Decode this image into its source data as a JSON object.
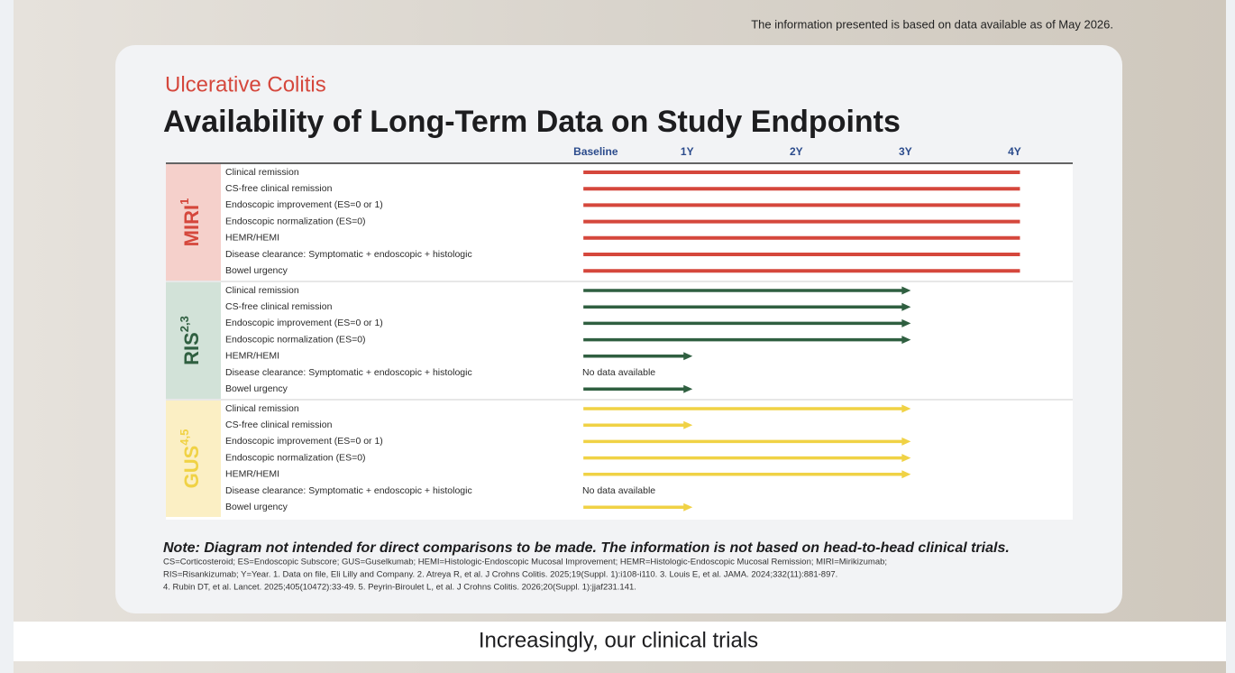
{
  "top_note": "The information presented is based on data available as of May 2026.",
  "caption": "Increasingly, our clinical trials",
  "chart_data": {
    "type": "range-bar",
    "subtitle": "Ulcerative Colitis",
    "title": "Availability of Long-Term Data on Study Endpoints",
    "xlim": [
      -0.15,
      4.5
    ],
    "xticks": [
      {
        "value": 0,
        "label": "Baseline"
      },
      {
        "value": 1,
        "label": "1Y"
      },
      {
        "value": 2,
        "label": "2Y"
      },
      {
        "value": 3,
        "label": "3Y"
      },
      {
        "value": 4,
        "label": "4Y"
      }
    ],
    "categories": [
      "Clinical remission",
      "CS-free clinical remission",
      "Endoscopic improvement (ES=0 or 1)",
      "Endoscopic normalization (ES=0)",
      "HEMR/HEMI",
      "Disease clearance: Symptomatic + endoscopic + histologic",
      "Bowel urgency"
    ],
    "no_data_label": "No data available",
    "series": [
      {
        "name": "MIRI",
        "superscript": "1",
        "color": "#d5473c",
        "band_color": "#f5d0cb",
        "arrow": false,
        "values": [
          4,
          4,
          4,
          4,
          4,
          4,
          4
        ]
      },
      {
        "name": "RIS",
        "superscript": "2,3",
        "color": "#2f5f40",
        "band_color": "#d2e2d8",
        "arrow": true,
        "values": [
          3,
          3,
          3,
          3,
          1,
          null,
          1
        ]
      },
      {
        "name": "GUS",
        "superscript": "4,5",
        "color": "#f0d245",
        "band_color": "#fbefc4",
        "arrow": true,
        "values": [
          3,
          1,
          3,
          3,
          3,
          null,
          1
        ]
      }
    ],
    "note": "Note: Diagram not intended for direct comparisons to be made. The information is not based on head-to-head clinical trials.",
    "footnotes": [
      "CS=Corticosteroid; ES=Endoscopic Subscore; GUS=Guselkumab; HEMI=Histologic-Endoscopic Mucosal Improvement; HEMR=Histologic-Endoscopic Mucosal Remission; MIRI=Mirikizumab;",
      "RIS=Risankizumab; Y=Year. 1. Data on file, Eli Lilly and Company. 2. Atreya R, et al. J Crohns Colitis. 2025;19(Suppl. 1):i108-i110. 3. Louis E, et al. JAMA. 2024;332(11):881-897.",
      "4. Rubin DT, et al. Lancet. 2025;405(10472):33-49. 5. Peyrin-Biroulet L, et al. J Crohns Colitis. 2026;20(Suppl. 1):jjaf231.141."
    ]
  }
}
